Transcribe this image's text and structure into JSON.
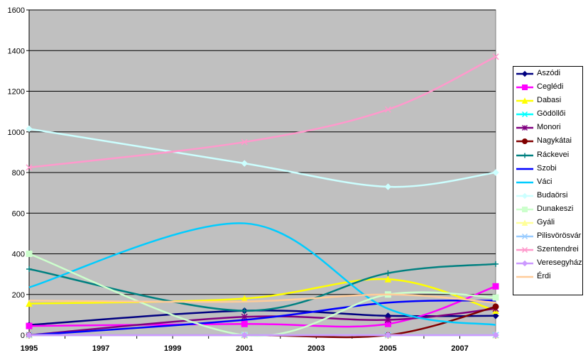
{
  "chart_data": {
    "type": "line",
    "title": "",
    "xlabel": "",
    "ylabel": "",
    "ylim": [
      0,
      1600
    ],
    "yticks": [
      0,
      200,
      400,
      600,
      800,
      1000,
      1200,
      1400,
      1600
    ],
    "xticks": [
      1995,
      1997,
      1999,
      2001,
      2003,
      2005,
      2007
    ],
    "x": [
      1995,
      2001,
      2005,
      2008
    ],
    "grid": "horizontal",
    "plot_background": "#c0c0c0",
    "legend_position": "right",
    "series": [
      {
        "name": "Aszódi",
        "color": "#000080",
        "marker": "diamond",
        "values": [
          50,
          120,
          95,
          95
        ]
      },
      {
        "name": "Ceglédi",
        "color": "#ff00ff",
        "marker": "square",
        "values": [
          45,
          55,
          55,
          240
        ]
      },
      {
        "name": "Dabasi",
        "color": "#ffff00",
        "marker": "triangle",
        "values": [
          155,
          180,
          275,
          120
        ]
      },
      {
        "name": "Gödöllői",
        "color": "#00ffff",
        "marker": "x",
        "values": [
          0,
          0,
          0,
          0
        ]
      },
      {
        "name": "Monori",
        "color": "#800080",
        "marker": "asterisk",
        "values": [
          0,
          90,
          75,
          130
        ]
      },
      {
        "name": "Nagykátai",
        "color": "#800000",
        "marker": "circle",
        "values": [
          0,
          0,
          0,
          140
        ]
      },
      {
        "name": "Ráckevei",
        "color": "#008080",
        "marker": "plus",
        "values": [
          325,
          120,
          305,
          350
        ]
      },
      {
        "name": "Szobi",
        "color": "#0000ff",
        "marker": "none",
        "values": [
          0,
          75,
          160,
          170
        ]
      },
      {
        "name": "Váci",
        "color": "#00ccff",
        "marker": "none",
        "values": [
          235,
          550,
          130,
          50
        ]
      },
      {
        "name": "Budaörsi",
        "color": "#ccffff",
        "marker": "diamond",
        "values": [
          1015,
          845,
          730,
          800
        ]
      },
      {
        "name": "Dunakeszi",
        "color": "#ccffcc",
        "marker": "square",
        "values": [
          400,
          0,
          200,
          185
        ]
      },
      {
        "name": "Gyáli",
        "color": "#ffff99",
        "marker": "triangle",
        "values": [
          0,
          0,
          0,
          0
        ]
      },
      {
        "name": "Pilisvörösvár",
        "color": "#99ccff",
        "marker": "x",
        "values": [
          0,
          0,
          0,
          0
        ]
      },
      {
        "name": "Szentendrei",
        "color": "#ff99cc",
        "marker": "x",
        "values": [
          825,
          950,
          1110,
          1370
        ]
      },
      {
        "name": "Veresegyház",
        "color": "#cc99ff",
        "marker": "diamond",
        "values": [
          0,
          0,
          0,
          0
        ]
      },
      {
        "name": "Érdi",
        "color": "#ffcc99",
        "marker": "none",
        "values": [
          170,
          165,
          200,
          160
        ]
      }
    ]
  }
}
